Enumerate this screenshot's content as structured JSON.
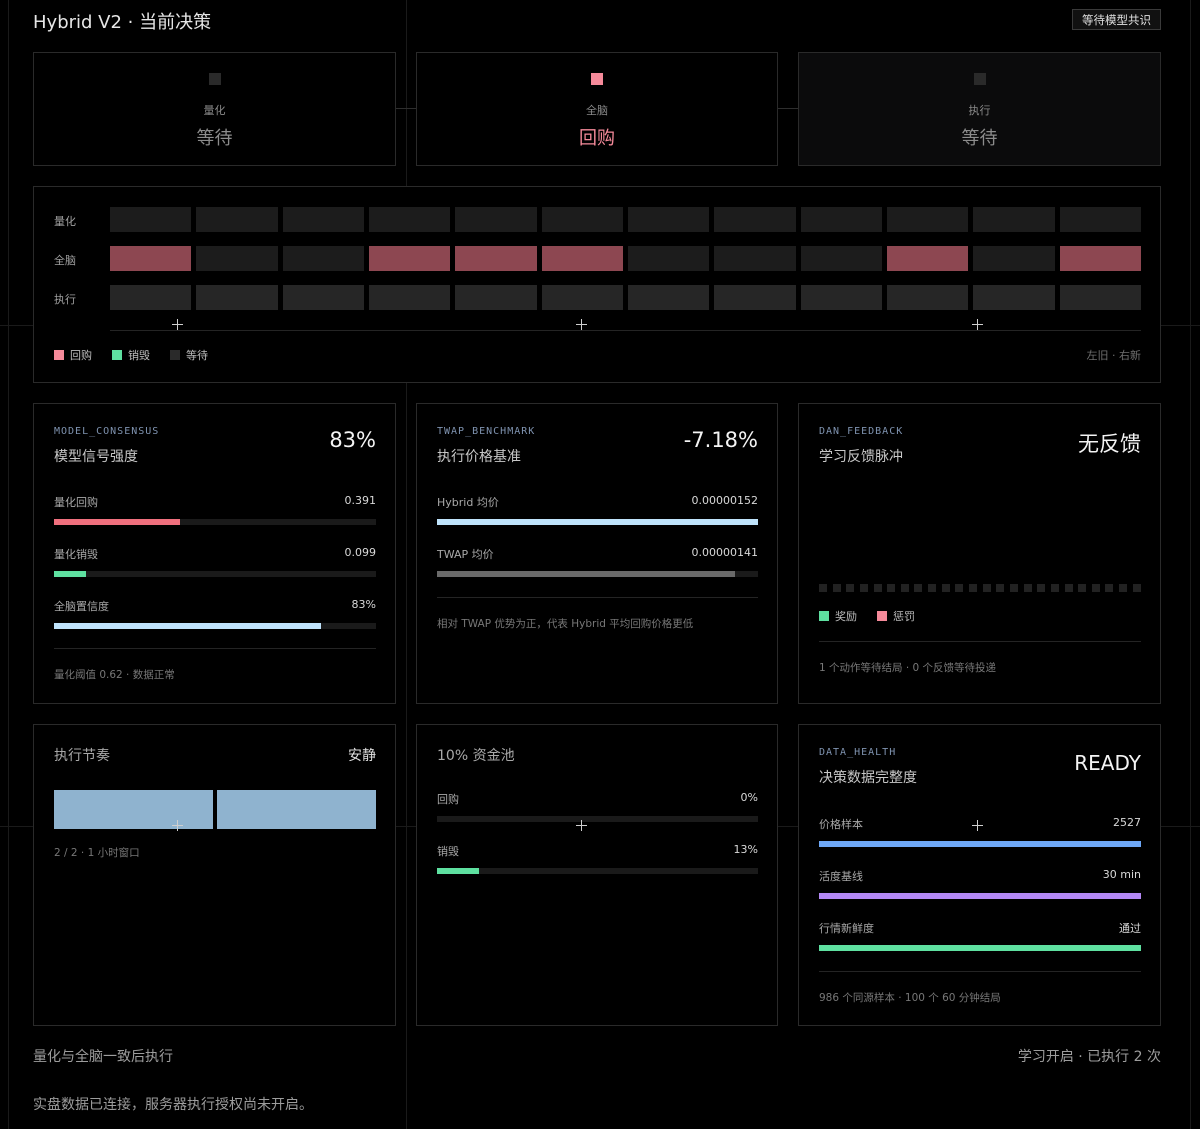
{
  "header": {
    "title": "Hybrid V2 · 当前决策",
    "badge": "等待模型共识"
  },
  "colors": {
    "buyback": "#f58a9a",
    "burn": "#5ee0a0",
    "wait": "#2a2a2a",
    "timeline_buyback": "#8d4751",
    "timeline_idle": "#1c1c1c"
  },
  "stages": [
    {
      "label": "量化",
      "value": "等待",
      "state": "wait"
    },
    {
      "label": "全脑",
      "value": "回购",
      "state": "buyback"
    },
    {
      "label": "执行",
      "value": "等待",
      "state": "wait"
    }
  ],
  "timeline": {
    "rows": [
      {
        "label": "量化",
        "cells": [
          "wait",
          "wait",
          "wait",
          "wait",
          "wait",
          "wait",
          "wait",
          "wait",
          "wait",
          "wait",
          "wait",
          "wait"
        ]
      },
      {
        "label": "全脑",
        "cells": [
          "buyback",
          "wait",
          "wait",
          "buyback",
          "buyback",
          "buyback",
          "wait",
          "wait",
          "wait",
          "buyback",
          "wait",
          "buyback"
        ]
      },
      {
        "label": "执行",
        "cells": [
          "wait",
          "wait",
          "wait",
          "wait",
          "wait",
          "wait",
          "wait",
          "wait",
          "wait",
          "wait",
          "wait",
          "wait"
        ]
      }
    ],
    "legend": [
      {
        "label": "回购",
        "color": "#f58a9a"
      },
      {
        "label": "销毁",
        "color": "#5ee0a0"
      },
      {
        "label": "等待",
        "color": "#2a2a2a"
      }
    ],
    "hint": "左旧 · 右新"
  },
  "consensus": {
    "code": "MODEL_CONSENSUS",
    "title": "模型信号强度",
    "value": "83%",
    "bars": [
      {
        "label": "量化回购",
        "value": "0.391",
        "level": 0.391,
        "color": "#f0707e"
      },
      {
        "label": "量化销毁",
        "value": "0.099",
        "level": 0.099,
        "color": "#5ee0a0"
      },
      {
        "label": "全脑置信度",
        "value": "83%",
        "level": 0.83,
        "color": "#bfe3fb"
      }
    ],
    "footer": "量化阈值 0.62 · 数据正常"
  },
  "twap": {
    "code": "TWAP_BENCHMARK",
    "title": "执行价格基准",
    "value": "-7.18%",
    "bars": [
      {
        "label": "Hybrid 均价",
        "value": "0.00000152",
        "level": 1.0,
        "color": "#bfe3fb"
      },
      {
        "label": "TWAP 均价",
        "value": "0.00000141",
        "level": 0.928,
        "color": "#6a6a6a"
      }
    ],
    "footer": "相对 TWAP 优势为正，代表 Hybrid 平均回购价格更低"
  },
  "feedback": {
    "code": "DAN_FEEDBACK",
    "title": "学习反馈脉冲",
    "value": "无反馈",
    "dot_count": 24,
    "legend": [
      {
        "label": "奖励",
        "color": "#5ee0a0"
      },
      {
        "label": "惩罚",
        "color": "#f58a9a"
      }
    ],
    "footer": "1 个动作等待结局 · 0 个反馈等待投递"
  },
  "rhythm": {
    "title": "执行节奏",
    "status": "安静",
    "blocks": 2,
    "block_color": "#8fb3cf",
    "footer": "2 / 2 · 1 小时窗口"
  },
  "pool": {
    "title": "10% 资金池",
    "bars": [
      {
        "label": "回购",
        "value": "0%",
        "level": 0.0,
        "color": "#f58a9a"
      },
      {
        "label": "销毁",
        "value": "13%",
        "level": 0.13,
        "color": "#5ee0a0"
      }
    ]
  },
  "health": {
    "code": "DATA_HEALTH",
    "title": "决策数据完整度",
    "value": "READY",
    "bars": [
      {
        "label": "价格样本",
        "value": "2527",
        "level": 1.0,
        "color": "#6ea8f7"
      },
      {
        "label": "活度基线",
        "value": "30 min",
        "level": 1.0,
        "color": "#b388f5"
      },
      {
        "label": "行情新鲜度",
        "value": "通过",
        "level": 1.0,
        "color": "#5ee0a0"
      }
    ],
    "footer": "986 个同源样本 · 100 个 60 分钟结局"
  },
  "footer": {
    "left": "量化与全脑一致后执行",
    "right": "学习开启 · 已执行 2 次",
    "note": "实盘数据已连接，服务器执行授权尚未开启。"
  }
}
